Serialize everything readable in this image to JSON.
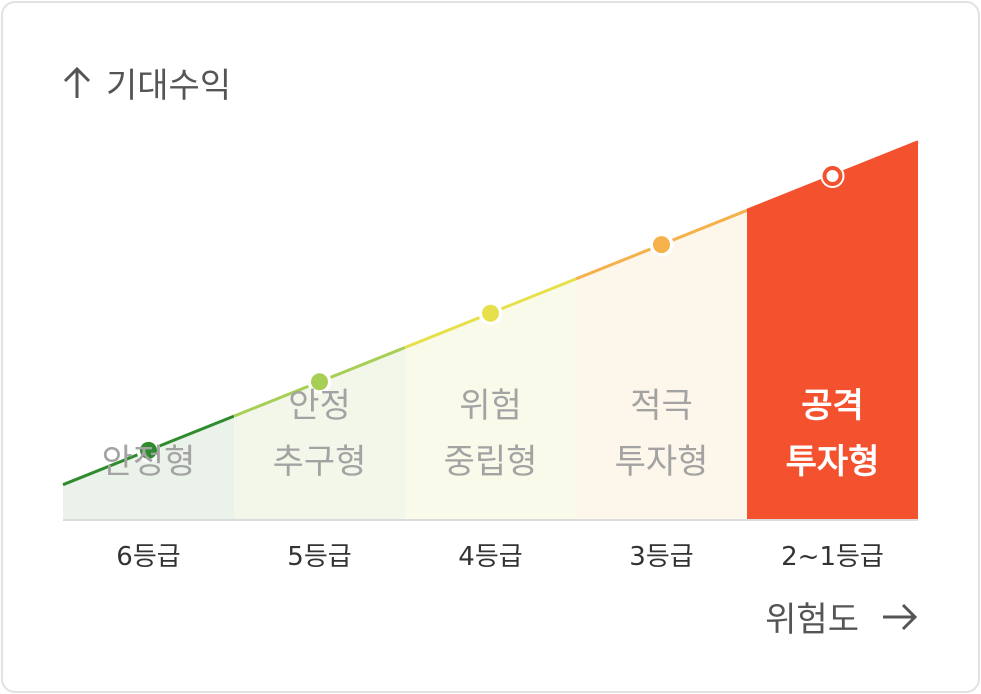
{
  "y_axis_label": "기대수익",
  "x_axis_label": "위험도",
  "chart_data": {
    "type": "area",
    "title": "",
    "ylabel": "기대수익",
    "xlabel": "위험도",
    "categories": [
      "6등급",
      "5등급",
      "4등급",
      "3등급",
      "2~1등급"
    ],
    "bands": [
      {
        "label_lines": [
          "안정형"
        ],
        "grade": "6등급",
        "fill": "#eaf2ea",
        "line": "#2e8b2e",
        "marker": "#2e8b2e",
        "text_color": "#a3a3a3",
        "highlight": false
      },
      {
        "label_lines": [
          "안정",
          "추구형"
        ],
        "grade": "5등급",
        "fill": "#f3f7ea",
        "line": "#a8cf55",
        "marker": "#a8cf55",
        "text_color": "#a3a3a3",
        "highlight": false
      },
      {
        "label_lines": [
          "위험",
          "중립형"
        ],
        "grade": "4등급",
        "fill": "#fafaea",
        "line": "#e6e04a",
        "marker": "#e6e04a",
        "text_color": "#a3a3a3",
        "highlight": false
      },
      {
        "label_lines": [
          "적극",
          "투자형"
        ],
        "grade": "3등급",
        "fill": "#fdf6ea",
        "line": "#f5b14a",
        "marker": "#f5b14a",
        "text_color": "#a3a3a3",
        "highlight": false
      },
      {
        "label_lines": [
          "공격",
          "투자형"
        ],
        "grade": "2~1등급",
        "fill": "#f4522f",
        "line": "#f4522f",
        "marker": "#f4522f",
        "text_color": "#ffffff",
        "highlight": true
      }
    ],
    "values": [
      1,
      2,
      3,
      4,
      5
    ],
    "ylim": [
      0,
      5.7
    ],
    "trend": "expected return increases with risk"
  }
}
